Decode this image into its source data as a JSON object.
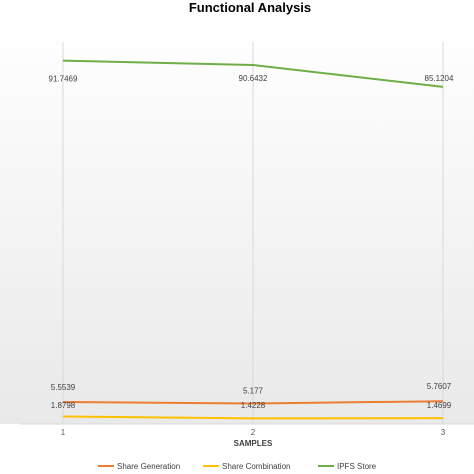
{
  "chart_data": {
    "type": "line",
    "title": "Functional Analysis",
    "xlabel": "SAMPLES",
    "ylabel": "",
    "categories": [
      "1",
      "2",
      "3"
    ],
    "series": [
      {
        "name": "Share Generation",
        "color": "#ED7D31",
        "values": [
          5.5539,
          5.177,
          5.7607
        ],
        "labels": [
          "5.5539",
          "5.177",
          "5.7607"
        ]
      },
      {
        "name": "Share Combination",
        "color": "#FFC000",
        "values": [
          1.8798,
          1.4228,
          1.4699
        ],
        "labels": [
          "1.8798",
          "1.4228",
          "1.4699"
        ]
      },
      {
        "name": "IPFS Store",
        "color": "#70AD47",
        "values": [
          91.7469,
          90.6432,
          85.1204
        ],
        "labels": [
          "91.7469",
          "90.6432",
          "85.1204"
        ]
      }
    ],
    "ylim": [
      0,
      100
    ],
    "grid": "vertical",
    "legend": "bottom"
  }
}
